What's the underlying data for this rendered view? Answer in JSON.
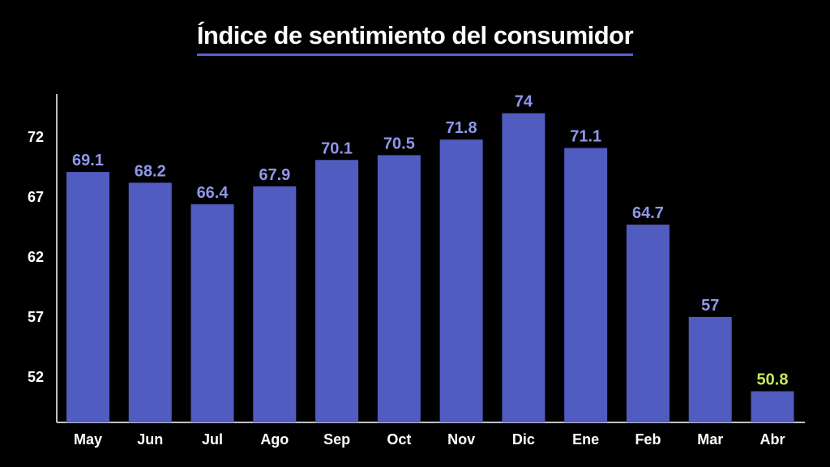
{
  "chart_data": {
    "type": "bar",
    "title": "Índice de sentimiento del consumidor",
    "categories": [
      "May",
      "Jun",
      "Jul",
      "Ago",
      "Sep",
      "Oct",
      "Nov",
      "Dic",
      "Ene",
      "Feb",
      "Mar",
      "Abr"
    ],
    "values": [
      69.1,
      68.2,
      66.4,
      67.9,
      70.1,
      70.5,
      71.8,
      74,
      71.1,
      64.7,
      57,
      50.8
    ],
    "data_labels": [
      "69.1",
      "68.2",
      "66.4",
      "67.9",
      "70.1",
      "70.5",
      "71.8",
      "74",
      "71.1",
      "64.7",
      "57",
      "50.8"
    ],
    "yticks": [
      52,
      57,
      62,
      67,
      72
    ],
    "ylim": [
      48.2,
      75.6
    ],
    "xlabel": "",
    "ylabel": "",
    "grid": false,
    "legend": "none",
    "colors": {
      "background": "#000000",
      "bar": "#515cc0",
      "label": "#8f97ea",
      "highlight_label": "#c6ea5a",
      "axis": "#ffffff",
      "title_underline": "#5a5fd0"
    },
    "highlight_index": 11
  }
}
